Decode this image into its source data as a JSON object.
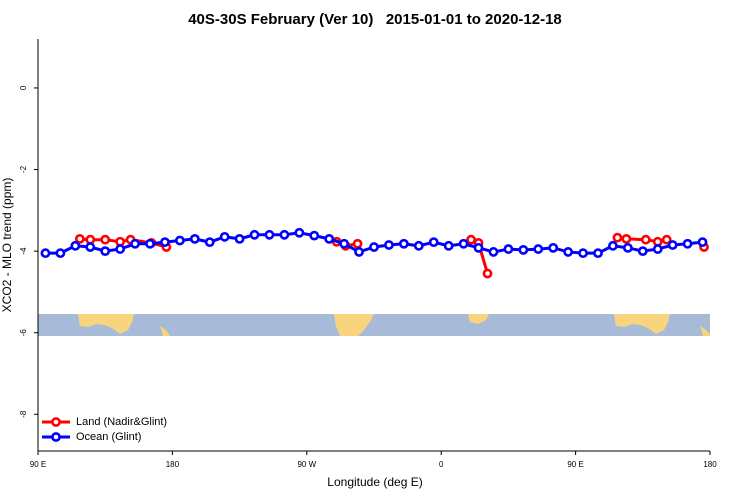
{
  "chart_data": {
    "type": "line",
    "title": "40S-30S February (Ver 10)   2015-01-01 to 2020-12-18",
    "x_label": "Longitude (deg E)",
    "y_label": "XCO2 - MLO trend (ppm)",
    "xlim": [
      90,
      540
    ],
    "ylim": [
      -8.9,
      1.2
    ],
    "xticks": [
      {
        "value": 90,
        "label": "90 E"
      },
      180,
      {
        "value": 270,
        "label": "90 W"
      },
      {
        "value": 360,
        "label": "0"
      },
      {
        "value": 450,
        "label": "90 E"
      },
      {
        "value": 540,
        "label": "180"
      }
    ],
    "yticks": [
      0,
      -2,
      -4,
      -6,
      -8
    ],
    "legend": "bottom-left",
    "series": [
      {
        "name": "Land (Nadir&Glint)",
        "color": "#ff0000",
        "x": [
          118,
          125,
          135,
          145,
          152,
          166,
          176,
          250,
          290,
          296,
          304,
          360,
          380,
          385,
          391,
          450,
          478,
          484,
          497,
          505,
          511,
          525,
          536
        ],
        "values": [
          -3.7,
          -3.72,
          -3.72,
          -3.77,
          -3.72,
          -3.8,
          -3.9,
          null,
          -3.77,
          -3.87,
          -3.82,
          null,
          -3.72,
          -3.8,
          -4.55,
          null,
          -3.67,
          -3.7,
          -3.72,
          -3.77,
          -3.72,
          null,
          -3.9
        ]
      },
      {
        "name": "Ocean (Glint)",
        "color": "#0000ff",
        "x": [
          95,
          105,
          115,
          125,
          135,
          145,
          155,
          165,
          175,
          185,
          195,
          205,
          215,
          225,
          235,
          245,
          255,
          265,
          275,
          285,
          295,
          305,
          315,
          325,
          335,
          345,
          355,
          365,
          375,
          385,
          395,
          405,
          415,
          425,
          435,
          445,
          455,
          465,
          475,
          485,
          495,
          505,
          515,
          525,
          535
        ],
        "values": [
          -4.05,
          -4.05,
          -3.87,
          -3.9,
          -4.0,
          -3.95,
          -3.82,
          -3.82,
          -3.78,
          -3.74,
          -3.7,
          -3.78,
          -3.65,
          -3.7,
          -3.6,
          -3.6,
          -3.6,
          -3.55,
          -3.62,
          -3.7,
          -3.82,
          -4.02,
          -3.9,
          -3.85,
          -3.82,
          -3.87,
          -3.78,
          -3.87,
          -3.82,
          -3.92,
          -4.02,
          -3.95,
          -3.97,
          -3.95,
          -3.92,
          -4.02,
          -4.05,
          -4.05,
          -3.87,
          -3.92,
          -4.0,
          -3.95,
          -3.85,
          -3.82,
          -3.78
        ]
      }
    ]
  }
}
